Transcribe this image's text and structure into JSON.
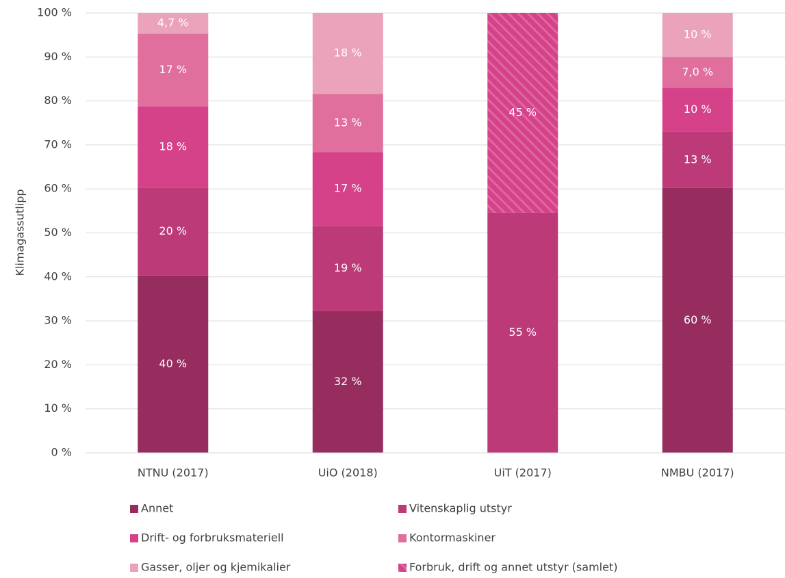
{
  "chart_data": {
    "type": "bar",
    "stacked": true,
    "y_label": "Klimagassutlipp",
    "categories": [
      "NTNU (2017)",
      "UiO (2018)",
      "UiT (2017)",
      "NMBU (2017)"
    ],
    "ylim": [
      0,
      100
    ],
    "yticks": [
      {
        "value": 0,
        "label": "0 %"
      },
      {
        "value": 10,
        "label": "10 %"
      },
      {
        "value": 20,
        "label": "20 %"
      },
      {
        "value": 30,
        "label": "30 %"
      },
      {
        "value": 40,
        "label": "40 %"
      },
      {
        "value": 50,
        "label": "50 %"
      },
      {
        "value": 60,
        "label": "60 %"
      },
      {
        "value": 70,
        "label": "70 %"
      },
      {
        "value": 80,
        "label": "80 %"
      },
      {
        "value": 90,
        "label": "90 %"
      },
      {
        "value": 100,
        "label": "100 %"
      }
    ],
    "grid": true,
    "legend": "bottom",
    "series": [
      {
        "name": "Annet",
        "color": "#962d5e",
        "values": [
          40.3,
          32.2,
          null,
          60.2
        ],
        "value_labels": [
          "40 %",
          "32 %",
          null,
          "60 %"
        ]
      },
      {
        "name": "Vitenskaplig utstyr",
        "color": "#bc3a78",
        "values": [
          20.0,
          19.4,
          54.6,
          12.8
        ],
        "value_labels": [
          "20 %",
          "19 %",
          "55 %",
          "13 %"
        ]
      },
      {
        "name": "Drift- og forbruksmateriell",
        "color": "#d6428a",
        "values": [
          18.5,
          16.8,
          null,
          10.0
        ],
        "value_labels": [
          "18 %",
          "17 %",
          null,
          "10 %"
        ]
      },
      {
        "name": "Kontormaskiner",
        "color": "#e06f9d",
        "values": [
          16.5,
          13.2,
          null,
          7.0
        ],
        "value_labels": [
          "17 %",
          "13 %",
          null,
          "7,0 %"
        ]
      },
      {
        "name": "Gasser, oljer og kjemikalier",
        "color": "#eba3bb",
        "values": [
          4.7,
          18.4,
          null,
          10.0
        ],
        "value_labels": [
          "4,7 %",
          "18 %",
          null,
          "10 %"
        ]
      },
      {
        "name": "Forbruk, drift og annet utstyr (samlet)",
        "color": "#d6428a",
        "hatch": true,
        "values": [
          null,
          null,
          45.4,
          null
        ],
        "value_labels": [
          null,
          null,
          "45 %",
          null
        ]
      }
    ]
  }
}
